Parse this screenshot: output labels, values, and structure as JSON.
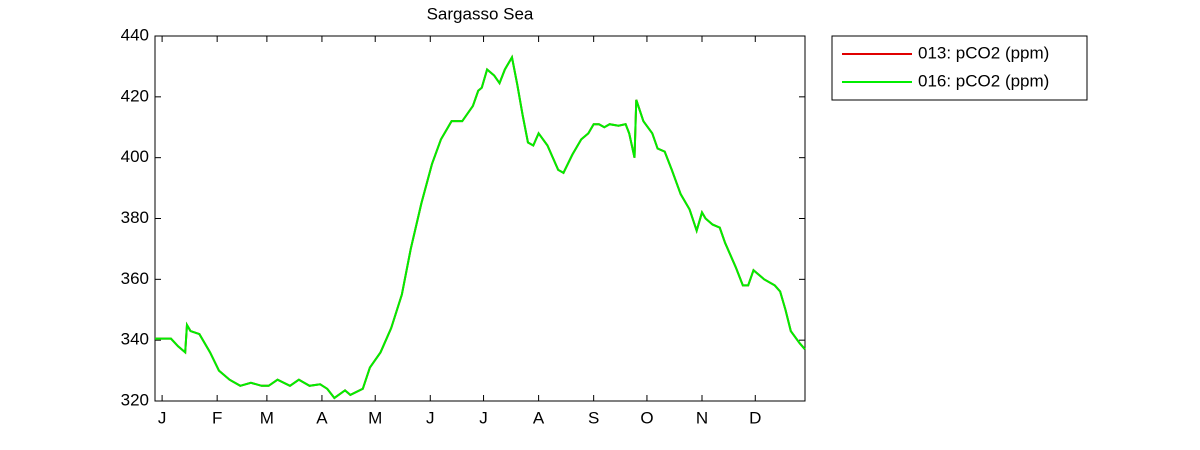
{
  "chart_data": {
    "type": "line",
    "title": "Sargasso Sea",
    "x": [
      -3,
      6,
      10,
      14,
      15,
      17,
      22,
      28,
      33,
      39,
      45,
      51,
      57,
      61,
      66,
      73,
      78,
      84,
      90,
      94,
      98,
      104,
      107,
      114,
      118,
      124,
      130,
      136,
      141,
      147,
      153,
      158,
      164,
      170,
      176,
      179,
      181,
      184,
      188,
      191,
      194,
      198,
      201,
      204,
      207,
      210,
      213,
      218,
      224,
      227,
      232,
      237,
      241,
      244,
      247,
      250,
      253,
      258,
      262,
      264,
      267,
      268,
      272,
      277,
      280,
      284,
      288,
      293,
      298,
      302,
      305,
      307,
      311,
      315,
      318,
      324,
      328,
      331,
      334,
      338,
      340,
      346,
      349,
      352,
      355,
      360,
      363
    ],
    "series": [
      {
        "name": "013: pCO2 (ppm)",
        "color": "#e00000",
        "values": [
          340.5,
          340.5,
          338,
          336,
          345,
          343,
          342,
          336,
          330,
          327,
          325,
          326,
          325,
          325,
          327,
          325,
          327,
          325,
          325.5,
          324,
          321,
          323.5,
          322,
          324,
          331,
          336,
          344,
          355,
          370,
          385,
          398,
          406,
          412,
          412,
          417,
          422,
          423,
          429,
          427,
          424.5,
          429,
          433,
          424,
          414,
          405,
          404,
          408,
          404,
          396,
          395,
          401,
          406,
          408,
          411,
          411,
          410,
          411,
          410.5,
          411,
          408,
          400,
          419,
          412,
          408,
          403,
          402,
          396,
          388,
          383,
          376,
          382,
          380,
          378,
          377,
          372,
          364,
          358,
          358,
          363,
          361,
          360,
          358,
          356,
          350,
          343,
          339,
          337
        ]
      },
      {
        "name": "016: pCO2 (ppm)",
        "color": "#00ee00",
        "values": [
          340.5,
          340.5,
          338,
          336,
          345,
          343,
          342,
          336,
          330,
          327,
          325,
          326,
          325,
          325,
          327,
          325,
          327,
          325,
          325.5,
          324,
          321,
          323.5,
          322,
          324,
          331,
          336,
          344,
          355,
          370,
          385,
          398,
          406,
          412,
          412,
          417,
          422,
          423,
          429,
          427,
          424.5,
          429,
          433,
          424,
          414,
          405,
          404,
          408,
          404,
          396,
          395,
          401,
          406,
          408,
          411,
          411,
          410,
          411,
          410.5,
          411,
          408,
          400,
          419,
          412,
          408,
          403,
          402,
          396,
          388,
          383,
          376,
          382,
          380,
          378,
          377,
          372,
          364,
          358,
          358,
          363,
          361,
          360,
          358,
          356,
          350,
          343,
          339,
          337
        ]
      }
    ],
    "xlim": [
      -3,
      363
    ],
    "xticks": [
      {
        "value": 1,
        "label": "J"
      },
      {
        "value": 32,
        "label": "F"
      },
      {
        "value": 60,
        "label": "M"
      },
      {
        "value": 91,
        "label": "A"
      },
      {
        "value": 121,
        "label": "M"
      },
      {
        "value": 152,
        "label": "J"
      },
      {
        "value": 182,
        "label": "J"
      },
      {
        "value": 213,
        "label": "A"
      },
      {
        "value": 244,
        "label": "S"
      },
      {
        "value": 274,
        "label": "O"
      },
      {
        "value": 305,
        "label": "N"
      },
      {
        "value": 335,
        "label": "D"
      }
    ],
    "ylim": [
      320,
      440
    ],
    "yticks": [
      320,
      340,
      360,
      380,
      400,
      420,
      440
    ],
    "legend": "outside-top-right"
  }
}
